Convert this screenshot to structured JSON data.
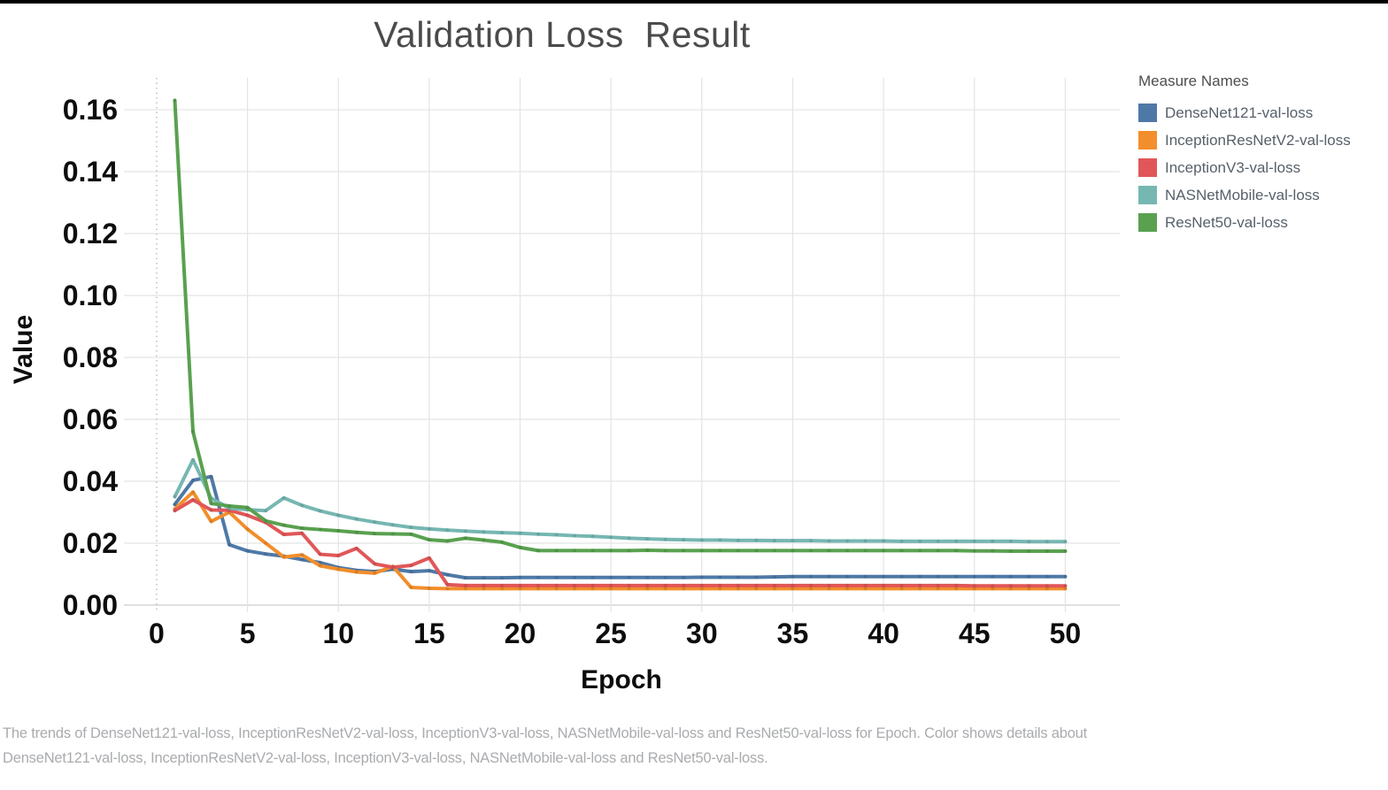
{
  "title": "Validation Loss  Result",
  "axes": {
    "y_label": "Value",
    "x_label": "Epoch",
    "y_ticks": [
      "0.00",
      "0.02",
      "0.04",
      "0.06",
      "0.08",
      "0.10",
      "0.12",
      "0.14",
      "0.16"
    ],
    "x_ticks": [
      "0",
      "5",
      "10",
      "15",
      "20",
      "25",
      "30",
      "35",
      "40",
      "45",
      "50"
    ]
  },
  "legend": {
    "title": "Measure Names",
    "items": [
      {
        "label": "DenseNet121-val-loss",
        "color": "#4e79a7"
      },
      {
        "label": "InceptionResNetV2-val-loss",
        "color": "#f28e2b"
      },
      {
        "label": "InceptionV3-val-loss",
        "color": "#e15759"
      },
      {
        "label": "NASNetMobile-val-loss",
        "color": "#76b7b2"
      },
      {
        "label": "ResNet50-val-loss",
        "color": "#59a14f"
      }
    ]
  },
  "caption": "The trends of DenseNet121-val-loss, InceptionResNetV2-val-loss, InceptionV3-val-loss, NASNetMobile-val-loss and ResNet50-val-loss for Epoch.  Color shows details about DenseNet121-val-loss, InceptionResNetV2-val-loss, InceptionV3-val-loss, NASNetMobile-val-loss and ResNet50-val-loss.",
  "chart_data": {
    "type": "line",
    "title": "Validation Loss Result",
    "xlabel": "Epoch",
    "ylabel": "Value",
    "xlim": [
      -1.8,
      53.0
    ],
    "ylim": [
      -0.0023,
      0.1703
    ],
    "grid": true,
    "legend_position": "right",
    "x_gridline_step": 5,
    "y_gridline_step": 0.02,
    "zero_epoch_dotted_line": true,
    "x": [
      1,
      2,
      3,
      4,
      5,
      6,
      7,
      8,
      9,
      10,
      11,
      12,
      13,
      14,
      15,
      16,
      17,
      18,
      19,
      20,
      21,
      22,
      23,
      24,
      25,
      26,
      27,
      28,
      29,
      30,
      31,
      32,
      33,
      34,
      35,
      36,
      37,
      38,
      39,
      40,
      41,
      42,
      43,
      44,
      45,
      46,
      47,
      48,
      49,
      50
    ],
    "series": [
      {
        "name": "DenseNet121-val-loss",
        "color": "#4e79a7",
        "values": [
          0.0325,
          0.0403,
          0.0415,
          0.0195,
          0.0175,
          0.0165,
          0.0158,
          0.0147,
          0.0137,
          0.0121,
          0.0112,
          0.0108,
          0.0116,
          0.0108,
          0.0111,
          0.0098,
          0.0088,
          0.0088,
          0.0088,
          0.0089,
          0.0089,
          0.0089,
          0.0089,
          0.0089,
          0.0089,
          0.0089,
          0.0089,
          0.0089,
          0.0089,
          0.009,
          0.009,
          0.009,
          0.009,
          0.0091,
          0.0092,
          0.0092,
          0.0092,
          0.0092,
          0.0092,
          0.0092,
          0.0092,
          0.0092,
          0.0092,
          0.0092,
          0.0092,
          0.0092,
          0.0092,
          0.0092,
          0.0092,
          0.0092
        ]
      },
      {
        "name": "InceptionResNetV2-val-loss",
        "color": "#f28e2b",
        "values": [
          0.031,
          0.0365,
          0.027,
          0.03,
          0.0245,
          0.02,
          0.0155,
          0.0162,
          0.0127,
          0.0116,
          0.0107,
          0.0103,
          0.0125,
          0.0057,
          0.0054,
          0.0053,
          0.0053,
          0.0053,
          0.0053,
          0.0053,
          0.0053,
          0.0053,
          0.0053,
          0.0053,
          0.0053,
          0.0053,
          0.0053,
          0.0053,
          0.0053,
          0.0053,
          0.0053,
          0.0053,
          0.0053,
          0.0053,
          0.0053,
          0.0053,
          0.0053,
          0.0053,
          0.0053,
          0.0053,
          0.0053,
          0.0053,
          0.0053,
          0.0053,
          0.0053,
          0.0053,
          0.0053,
          0.0053,
          0.0053,
          0.0053
        ]
      },
      {
        "name": "InceptionV3-val-loss",
        "color": "#e15759",
        "values": [
          0.0305,
          0.034,
          0.0307,
          0.0306,
          0.029,
          0.0267,
          0.0228,
          0.0232,
          0.0164,
          0.016,
          0.0183,
          0.0133,
          0.0122,
          0.0128,
          0.0152,
          0.0066,
          0.0063,
          0.0063,
          0.0063,
          0.0063,
          0.0063,
          0.0063,
          0.0063,
          0.0063,
          0.0063,
          0.0063,
          0.0063,
          0.0063,
          0.0063,
          0.0063,
          0.0063,
          0.0063,
          0.0063,
          0.0063,
          0.0063,
          0.0063,
          0.0063,
          0.0063,
          0.0063,
          0.0063,
          0.0063,
          0.0063,
          0.0063,
          0.0063,
          0.0062,
          0.0062,
          0.0062,
          0.0062,
          0.0062,
          0.0062
        ]
      },
      {
        "name": "NASNetMobile-val-loss",
        "color": "#76b7b2",
        "values": [
          0.035,
          0.0469,
          0.0345,
          0.0313,
          0.0308,
          0.0305,
          0.0346,
          0.0322,
          0.0304,
          0.029,
          0.0278,
          0.0268,
          0.0259,
          0.0251,
          0.0246,
          0.0242,
          0.0239,
          0.0236,
          0.0234,
          0.0232,
          0.0229,
          0.0227,
          0.0224,
          0.0222,
          0.0219,
          0.0216,
          0.0214,
          0.0212,
          0.0211,
          0.021,
          0.021,
          0.0209,
          0.0209,
          0.0208,
          0.0208,
          0.0208,
          0.0207,
          0.0207,
          0.0207,
          0.0207,
          0.0206,
          0.0206,
          0.0206,
          0.0206,
          0.0206,
          0.0206,
          0.0206,
          0.0205,
          0.0205,
          0.0205
        ]
      },
      {
        "name": "ResNet50-val-loss",
        "color": "#59a14f",
        "values": [
          0.163,
          0.056,
          0.0328,
          0.032,
          0.0315,
          0.0272,
          0.0258,
          0.0248,
          0.0244,
          0.024,
          0.0235,
          0.0231,
          0.023,
          0.0229,
          0.0211,
          0.0207,
          0.0216,
          0.021,
          0.0203,
          0.0186,
          0.0176,
          0.0176,
          0.0176,
          0.0176,
          0.0176,
          0.0176,
          0.0177,
          0.0176,
          0.0176,
          0.0176,
          0.0176,
          0.0176,
          0.0176,
          0.0176,
          0.0176,
          0.0176,
          0.0176,
          0.0176,
          0.0176,
          0.0176,
          0.0176,
          0.0176,
          0.0176,
          0.0176,
          0.0175,
          0.0175,
          0.0174,
          0.0174,
          0.0174,
          0.0174
        ]
      }
    ]
  }
}
